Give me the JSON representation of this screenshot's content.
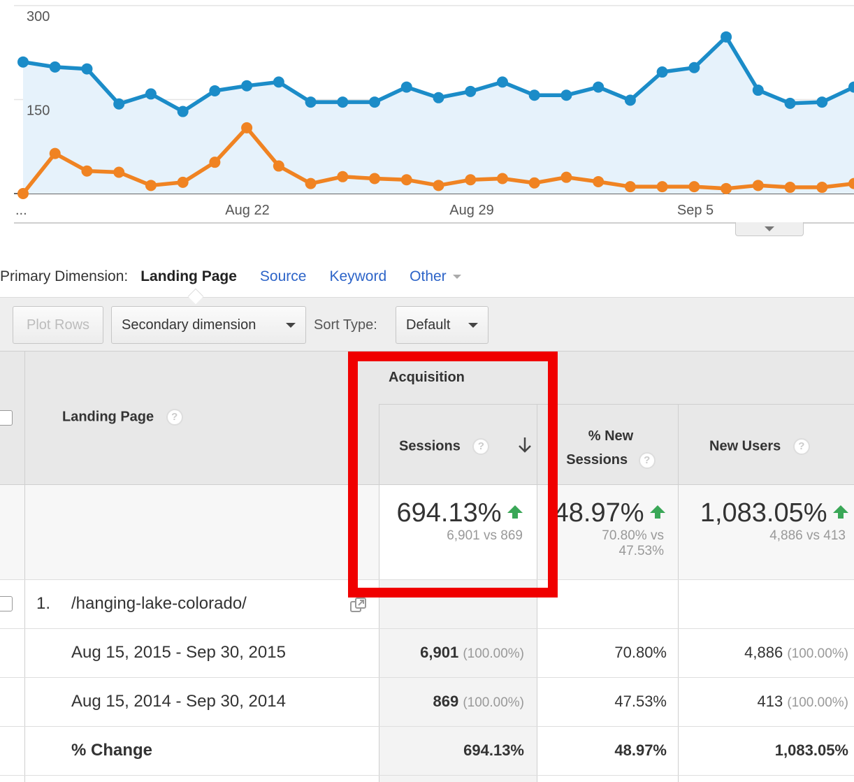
{
  "chart_data": {
    "type": "line",
    "x_ticks": [
      "...",
      "Aug 22",
      "Aug 29",
      "Sep 5"
    ],
    "y_ticks": [
      300,
      150
    ],
    "ylim": [
      0,
      300
    ],
    "grid": true,
    "series": [
      {
        "color": "#1b8cc8",
        "fill": "#e6f2fb",
        "values": [
          210,
          202,
          199,
          143,
          159,
          131,
          164,
          172,
          178,
          146,
          146,
          146,
          170,
          153,
          163,
          178,
          157,
          157,
          170,
          149,
          194,
          201,
          250,
          165,
          144,
          146,
          170
        ]
      },
      {
        "color": "#f08322",
        "values": [
          0,
          64,
          36,
          34,
          13,
          18,
          50,
          105,
          44,
          16,
          27,
          24,
          22,
          13,
          22,
          24,
          17,
          26,
          19,
          11,
          11,
          11,
          8,
          13,
          10,
          10,
          16
        ]
      }
    ]
  },
  "dimension_bar": {
    "label": "Primary Dimension:",
    "active": "Landing Page",
    "links": [
      "Source",
      "Keyword",
      "Other"
    ]
  },
  "toolbar": {
    "plot_rows": "Plot Rows",
    "secondary_dimension": "Secondary dimension",
    "sort_type_label": "Sort Type:",
    "sort_type_value": "Default"
  },
  "table": {
    "group_header": "Acquisition",
    "col_landing_page": "Landing Page",
    "col_sessions": "Sessions",
    "col_new_sessions_line1": "% New",
    "col_new_sessions_line2": "Sessions",
    "col_new_users": "New Users",
    "help": "?",
    "summary": {
      "sessions_pct": "694.13%",
      "sessions_vs": "6,901 vs 869",
      "new_sessions_pct": "48.97%",
      "new_sessions_vs_line1": "70.80% vs",
      "new_sessions_vs_line2": "47.53%",
      "new_users_pct": "1,083.05%",
      "new_users_vs": "4,886 vs 413"
    },
    "row": {
      "index": "1.",
      "page": "/hanging-lake-colorado/"
    },
    "sub_rows": [
      {
        "label": "Aug 15, 2015 - Sep 30, 2015",
        "sessions": "6,901",
        "sessions_pct": "(100.00%)",
        "new_sessions": "70.80%",
        "new_users": "4,886",
        "new_users_pct": "(100.00%)"
      },
      {
        "label": "Aug 15, 2014 - Sep 30, 2014",
        "sessions": "869",
        "sessions_pct": "(100.00%)",
        "new_sessions": "47.53%",
        "new_users": "413",
        "new_users_pct": "(100.00%)"
      },
      {
        "label": "% Change",
        "sessions": "694.13%",
        "new_sessions": "48.97%",
        "new_users": "1,083.05%"
      }
    ]
  }
}
